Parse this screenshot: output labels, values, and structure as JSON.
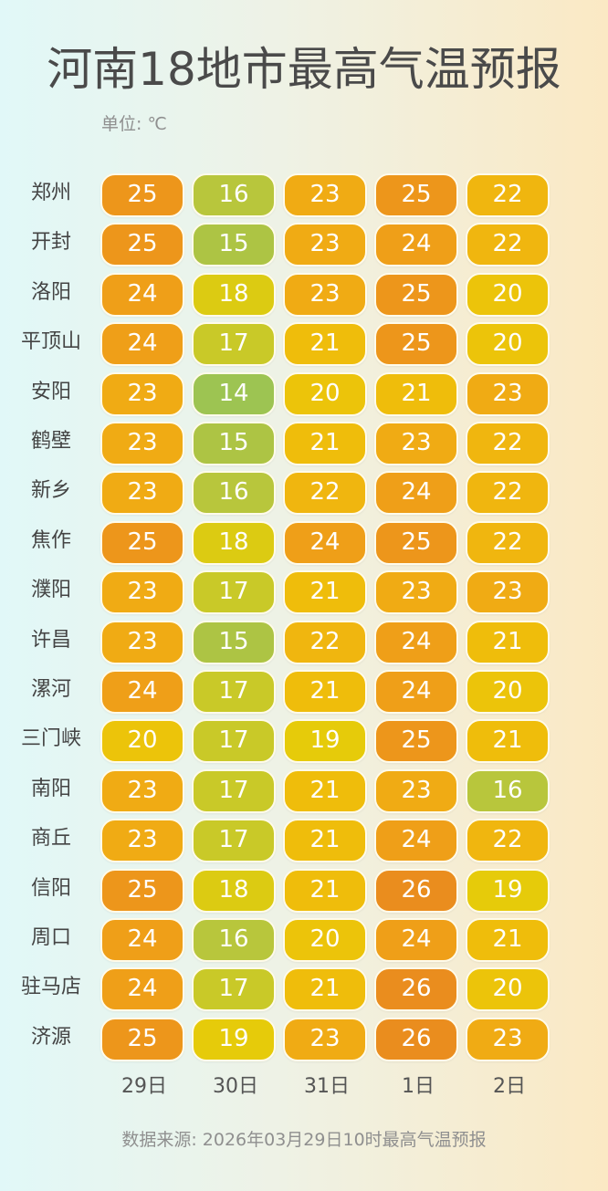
{
  "title": "河南18地市最高气温预报",
  "unit": "单位: ℃",
  "source": "数据来源: 2026年03月29日10时最高气温预报",
  "chart_data": {
    "type": "heatmap",
    "columns": [
      "29日",
      "30日",
      "31日",
      "1日",
      "2日"
    ],
    "rows": [
      {
        "city": "郑州",
        "values": [
          25,
          16,
          23,
          25,
          22
        ]
      },
      {
        "city": "开封",
        "values": [
          25,
          15,
          23,
          24,
          22
        ]
      },
      {
        "city": "洛阳",
        "values": [
          24,
          18,
          23,
          25,
          20
        ]
      },
      {
        "city": "平顶山",
        "values": [
          24,
          17,
          21,
          25,
          20
        ]
      },
      {
        "city": "安阳",
        "values": [
          23,
          14,
          20,
          21,
          23
        ]
      },
      {
        "city": "鹤壁",
        "values": [
          23,
          15,
          21,
          23,
          22
        ]
      },
      {
        "city": "新乡",
        "values": [
          23,
          16,
          22,
          24,
          22
        ]
      },
      {
        "city": "焦作",
        "values": [
          25,
          18,
          24,
          25,
          22
        ]
      },
      {
        "city": "濮阳",
        "values": [
          23,
          17,
          21,
          23,
          23
        ]
      },
      {
        "city": "许昌",
        "values": [
          23,
          15,
          22,
          24,
          21
        ]
      },
      {
        "city": "漯河",
        "values": [
          24,
          17,
          21,
          24,
          20
        ]
      },
      {
        "city": "三门峡",
        "values": [
          20,
          17,
          19,
          25,
          21
        ]
      },
      {
        "city": "南阳",
        "values": [
          23,
          17,
          21,
          23,
          16
        ]
      },
      {
        "city": "商丘",
        "values": [
          23,
          17,
          21,
          24,
          22
        ]
      },
      {
        "city": "信阳",
        "values": [
          25,
          18,
          21,
          26,
          19
        ]
      },
      {
        "city": "周口",
        "values": [
          24,
          16,
          20,
          24,
          21
        ]
      },
      {
        "city": "驻马店",
        "values": [
          24,
          17,
          21,
          26,
          20
        ]
      },
      {
        "city": "济源",
        "values": [
          25,
          19,
          23,
          26,
          23
        ]
      }
    ],
    "color_scale": {
      "14": "#9dc452",
      "15": "#adc444",
      "16": "#b8c63c",
      "17": "#c9c928",
      "18": "#dccb12",
      "19": "#e6cb0a",
      "20": "#ecc40a",
      "21": "#efbd0b",
      "22": "#f0b60f",
      "23": "#f0ab14",
      "24": "#ef9f18",
      "25": "#ed961b",
      "26": "#ea8d1e"
    }
  }
}
